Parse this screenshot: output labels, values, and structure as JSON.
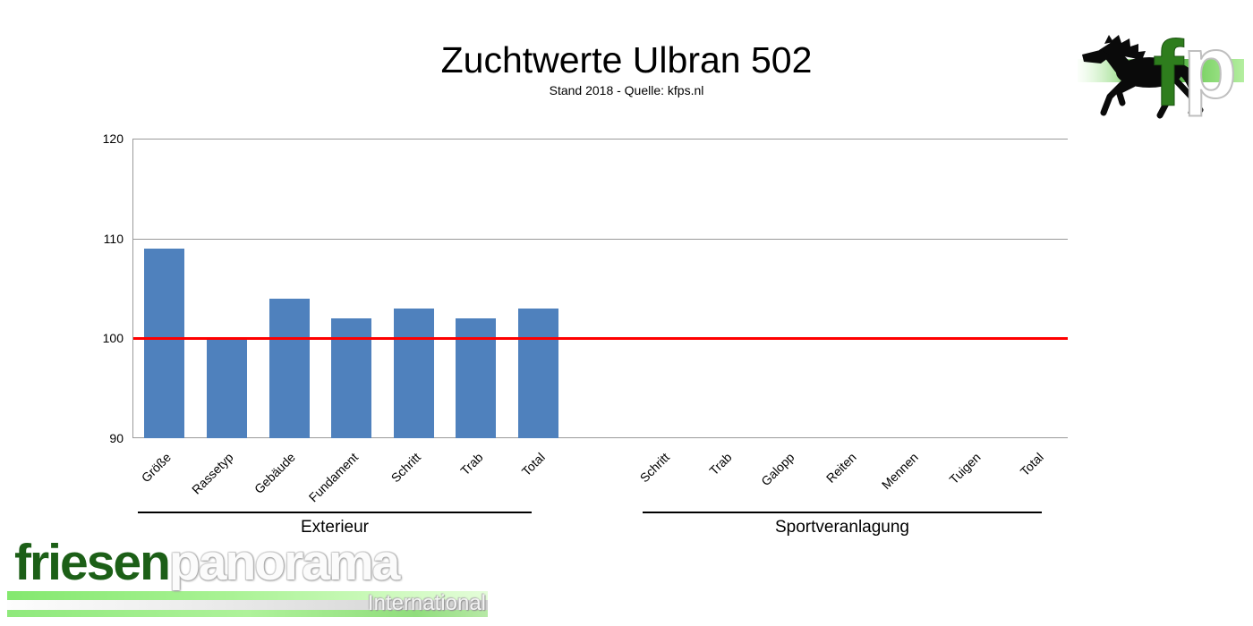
{
  "header": {
    "title": "Zuchtwerte Ulbran 502",
    "subtitle": "Stand 2018 - Quelle: kfps.nl"
  },
  "chart_data": {
    "type": "bar",
    "title": "Zuchtwerte Ulbran 502",
    "subtitle": "Stand 2018 - Quelle: kfps.nl",
    "xlabel": "",
    "ylabel": "",
    "ylim": [
      90,
      120
    ],
    "yticks": [
      120,
      110,
      100,
      90
    ],
    "grid": true,
    "legend": false,
    "bar_color": "#4F81BD",
    "reference_line": {
      "value": 100,
      "color": "#FF0000"
    },
    "groups": [
      {
        "label": "Exterieur",
        "categories": [
          "Größe",
          "Rassetyp",
          "Gebäude",
          "Fundament",
          "Schritt",
          "Trab",
          "Total"
        ],
        "values": [
          109,
          100,
          104,
          102,
          103,
          102,
          103
        ]
      },
      {
        "label": "Sportveranlagung",
        "categories": [
          "Schritt",
          "Trab",
          "Galopp",
          "Reiten",
          "Mennen",
          "Tuigen",
          "Total"
        ],
        "values": [
          null,
          null,
          null,
          null,
          null,
          null,
          null
        ]
      }
    ]
  },
  "corner_logo": {
    "letter_f": "f",
    "letter_p": "p"
  },
  "footer_logo": {
    "word_green": "friesen",
    "word_light": "panorama",
    "subtext": "International"
  },
  "colors": {
    "bar": "#4F81BD",
    "reference_line": "#FF0000",
    "gridline": "#9A9A9A",
    "logo_dark_green": "#1C5F17",
    "logo_f_green": "#2E7D1D"
  }
}
